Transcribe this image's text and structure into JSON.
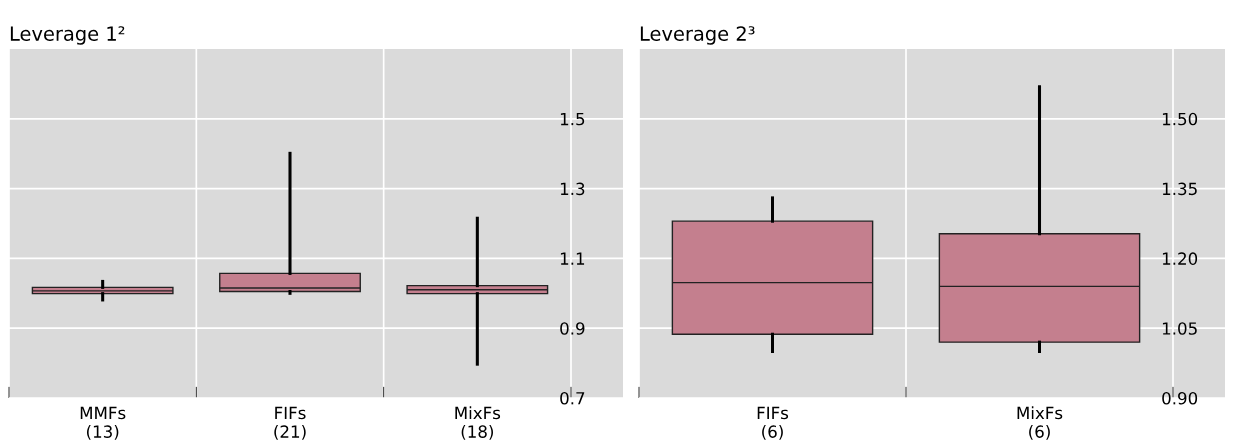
{
  "chart_data": [
    {
      "type": "box",
      "title": "Leverage 1²",
      "categories": [
        "MMFs\n(13)",
        "FIFs\n(21)",
        "MixFs\n(18)"
      ],
      "color": "#c47f8e",
      "boxes": [
        {
          "low": 0.981,
          "q1": 0.999,
          "median": 1.007,
          "q3": 1.017,
          "high": 1.034
        },
        {
          "low": 1.0,
          "q1": 1.005,
          "median": 1.015,
          "q3": 1.057,
          "high": 1.401
        },
        {
          "low": 0.797,
          "q1": 0.999,
          "median": 1.01,
          "q3": 1.022,
          "high": 1.215
        }
      ],
      "ylim": [
        0.7,
        1.7
      ],
      "yticks": [
        0.7,
        0.9,
        1.1,
        1.3,
        1.5
      ],
      "grid": true
    },
    {
      "type": "box",
      "title": "Leverage 2³",
      "categories": [
        "FIFs\n(6)",
        "MixFs\n(6)"
      ],
      "color": "#c47f8e",
      "boxes": [
        {
          "low": 1.0,
          "q1": 1.037,
          "median": 1.148,
          "q3": 1.28,
          "high": 1.33
        },
        {
          "low": 1.0,
          "q1": 1.02,
          "median": 1.14,
          "q3": 1.253,
          "high": 1.569
        }
      ],
      "ylim": [
        0.9,
        1.65
      ],
      "yticks": [
        {
          "value": 0.9,
          "label": "0.90"
        },
        {
          "value": 1.05,
          "label": "1.05"
        },
        {
          "value": 1.2,
          "label": "1.20"
        },
        {
          "value": 1.35,
          "label": "1.35"
        },
        {
          "value": 1.5,
          "label": "1.50"
        }
      ],
      "grid": true
    }
  ]
}
